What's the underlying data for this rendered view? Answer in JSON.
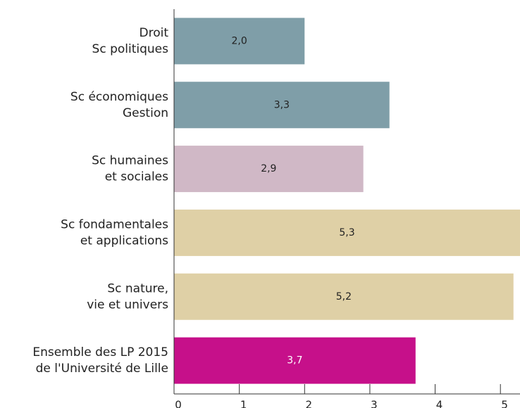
{
  "chart_data": {
    "type": "hbar",
    "categories": [
      [
        "Droit",
        "Sc politiques"
      ],
      [
        "Sc économiques",
        "Gestion"
      ],
      [
        "Sc humaines",
        "et sociales"
      ],
      [
        "Sc fondamentales",
        "et applications"
      ],
      [
        "Sc nature,",
        "vie et univers"
      ],
      [
        "Ensemble des LP 2015",
        "de l'Université de Lille"
      ]
    ],
    "values": [
      2.0,
      3.3,
      2.9,
      5.3,
      5.2,
      3.7
    ],
    "value_labels": [
      "2,0",
      "3,3",
      "2,9",
      "5,3",
      "5,2",
      "3,7"
    ],
    "colors": [
      "#7f9ea8",
      "#7f9ea8",
      "#d0b8c6",
      "#dfd0a6",
      "#dfd0a6",
      "#c6108a"
    ],
    "value_label_colors": [
      "#222222",
      "#222222",
      "#222222",
      "#222222",
      "#222222",
      "#ffffff"
    ],
    "xlim": [
      0,
      5.3
    ],
    "xticks": [
      0,
      1,
      2,
      3,
      4,
      5
    ]
  }
}
